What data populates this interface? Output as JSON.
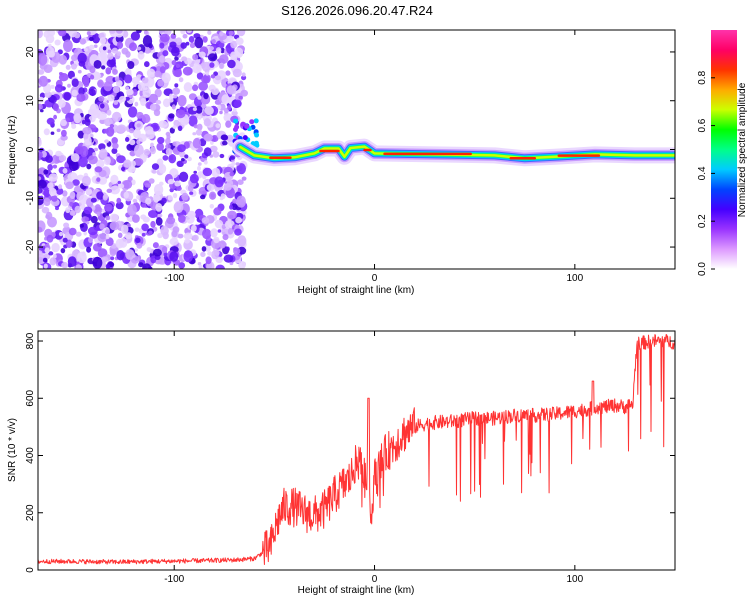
{
  "title": "S126.2026.096.20.47.R24",
  "chart_data": [
    {
      "type": "heatmap",
      "name": "spectrogram",
      "xlabel": "Height of straight line (km)",
      "ylabel": "Frequency (Hz)",
      "xlim": [
        -168,
        150
      ],
      "ylim": [
        -24.5,
        24.5
      ],
      "xticks": [
        -100,
        0,
        100
      ],
      "xtick_labels": [
        "-100",
        "0",
        "100"
      ],
      "yticks": [
        -20,
        -10,
        0,
        10,
        20
      ],
      "ytick_labels": [
        "-20",
        "-10",
        "0",
        "10",
        "20"
      ],
      "noise_region_x": [
        -168,
        -67
      ],
      "ridge_track": [
        {
          "x": -67,
          "y": 0.5
        },
        {
          "x": -60,
          "y": -1.2
        },
        {
          "x": -50,
          "y": -1.8
        },
        {
          "x": -40,
          "y": -1.6
        },
        {
          "x": -30,
          "y": -0.8
        },
        {
          "x": -25,
          "y": 0.2
        },
        {
          "x": -18,
          "y": 0.2
        },
        {
          "x": -15,
          "y": -1.5
        },
        {
          "x": -12,
          "y": 0.3
        },
        {
          "x": -5,
          "y": 0.6
        },
        {
          "x": 0,
          "y": -0.8
        },
        {
          "x": 30,
          "y": -1.0
        },
        {
          "x": 60,
          "y": -1.2
        },
        {
          "x": 75,
          "y": -1.8
        },
        {
          "x": 90,
          "y": -1.5
        },
        {
          "x": 110,
          "y": -1.0
        },
        {
          "x": 130,
          "y": -1.2
        },
        {
          "x": 150,
          "y": -1.2
        }
      ],
      "colorbar": {
        "label": "Normalized spectral amplitude",
        "range": [
          0.0,
          1.0
        ],
        "ticks": [
          0.0,
          0.2,
          0.4,
          0.6,
          0.8
        ],
        "tick_labels": [
          "0.0",
          "0.2",
          "0.4",
          "0.6",
          "0.8"
        ],
        "colors": [
          "#ffffff",
          "#dd99ff",
          "#9933ff",
          "#4400ff",
          "#0044ff",
          "#00ccff",
          "#00ff88",
          "#00ff00",
          "#ccff00",
          "#ffaa00",
          "#ff3300",
          "#ff0066",
          "#ff33aa"
        ]
      }
    },
    {
      "type": "line",
      "name": "snr",
      "xlabel": "Height of straight line (km)",
      "ylabel": "SNR (10 * v/v)",
      "xlim": [
        -168,
        150
      ],
      "ylim": [
        0,
        835
      ],
      "xticks": [
        -100,
        0,
        100
      ],
      "xtick_labels": [
        "-100",
        "0",
        "100"
      ],
      "yticks": [
        0,
        200,
        400,
        600,
        800
      ],
      "ytick_labels": [
        "0",
        "200",
        "400",
        "600",
        "800"
      ],
      "color": "#ff3333",
      "series": [
        {
          "name": "SNR",
          "x": [
            -168,
            -150,
            -130,
            -110,
            -90,
            -70,
            -60,
            -52,
            -48,
            -45,
            -40,
            -35,
            -30,
            -25,
            -20,
            -15,
            -12,
            -10,
            -8,
            -5,
            -3,
            -2,
            0,
            5,
            10,
            15,
            20,
            25,
            30,
            40,
            50,
            60,
            70,
            80,
            90,
            100,
            105,
            109,
            110,
            115,
            120,
            125,
            129,
            130,
            131,
            135,
            140,
            145,
            150
          ],
          "y": [
            30,
            30,
            28,
            30,
            32,
            35,
            40,
            80,
            180,
            220,
            220,
            200,
            190,
            210,
            260,
            300,
            320,
            360,
            380,
            350,
            300,
            200,
            320,
            400,
            440,
            480,
            500,
            510,
            515,
            520,
            530,
            530,
            540,
            540,
            545,
            555,
            560,
            565,
            570,
            570,
            575,
            570,
            580,
            700,
            790,
            795,
            800,
            800,
            795
          ]
        }
      ]
    }
  ]
}
